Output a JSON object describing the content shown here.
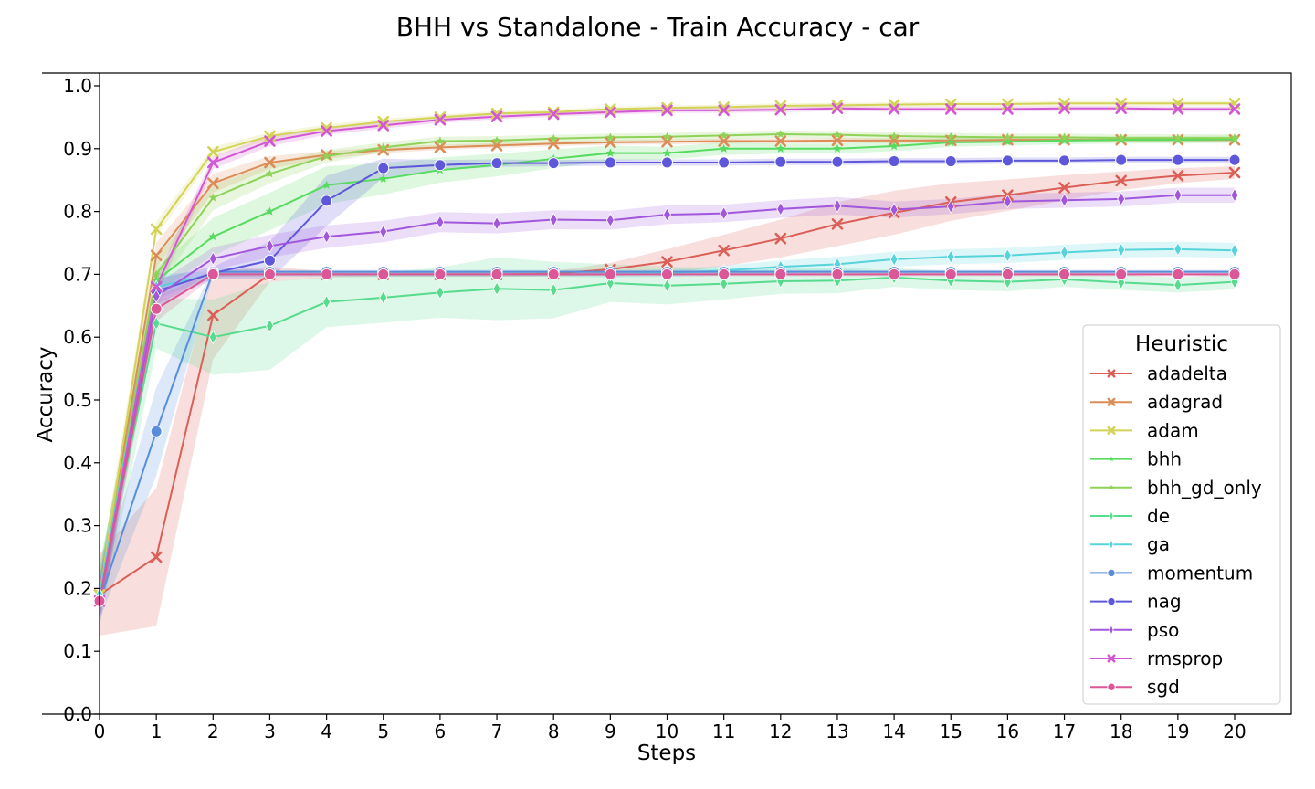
{
  "chart_data": {
    "type": "line",
    "title": "BHH vs Standalone - Train Accuracy - car",
    "xlabel": "Steps",
    "ylabel": "Accuracy",
    "x": [
      0,
      1,
      2,
      3,
      4,
      5,
      6,
      7,
      8,
      9,
      10,
      11,
      12,
      13,
      14,
      15,
      16,
      17,
      18,
      19,
      20
    ],
    "xlim": [
      0,
      20
    ],
    "ylim": [
      0.0,
      1.0
    ],
    "x_ticks": [
      0,
      1,
      2,
      3,
      4,
      5,
      6,
      7,
      8,
      9,
      10,
      11,
      12,
      13,
      14,
      15,
      16,
      17,
      18,
      19,
      20
    ],
    "y_ticks": [
      0.0,
      0.1,
      0.2,
      0.3,
      0.4,
      0.5,
      0.6,
      0.7,
      0.8,
      0.9,
      1.0
    ],
    "grid": false,
    "legend": {
      "title": "Heuristic",
      "placement": "right"
    },
    "series": [
      {
        "name": "adadelta",
        "color": "#db5f57",
        "marker": "x",
        "values": [
          0.19,
          0.25,
          0.635,
          0.7,
          0.7,
          0.7,
          0.7,
          0.7,
          0.701,
          0.708,
          0.72,
          0.738,
          0.757,
          0.78,
          0.798,
          0.815,
          0.826,
          0.838,
          0.849,
          0.857,
          0.862
        ],
        "band": [
          0.065,
          0.11,
          0.07,
          0.012,
          0.005,
          0.004,
          0.004,
          0.004,
          0.004,
          0.01,
          0.02,
          0.025,
          0.03,
          0.035,
          0.035,
          0.03,
          0.025,
          0.02,
          0.015,
          0.012,
          0.01
        ]
      },
      {
        "name": "adagrad",
        "color": "#db8d57",
        "marker": "x",
        "values": [
          0.19,
          0.73,
          0.845,
          0.878,
          0.89,
          0.898,
          0.902,
          0.905,
          0.908,
          0.91,
          0.911,
          0.912,
          0.912,
          0.913,
          0.913,
          0.913,
          0.914,
          0.914,
          0.914,
          0.914,
          0.914
        ],
        "band": [
          0.03,
          0.02,
          0.015,
          0.01,
          0.006,
          0.005,
          0.004,
          0.004,
          0.004,
          0.004,
          0.004,
          0.004,
          0.004,
          0.004,
          0.004,
          0.004,
          0.004,
          0.004,
          0.004,
          0.004,
          0.004
        ]
      },
      {
        "name": "adam",
        "color": "#d3d357",
        "marker": "x",
        "values": [
          0.19,
          0.772,
          0.895,
          0.92,
          0.933,
          0.943,
          0.95,
          0.956,
          0.958,
          0.963,
          0.965,
          0.966,
          0.968,
          0.969,
          0.97,
          0.971,
          0.971,
          0.972,
          0.972,
          0.972,
          0.972
        ],
        "band": [
          0.03,
          0.012,
          0.008,
          0.006,
          0.005,
          0.005,
          0.004,
          0.004,
          0.004,
          0.004,
          0.004,
          0.004,
          0.004,
          0.004,
          0.004,
          0.004,
          0.004,
          0.004,
          0.004,
          0.004,
          0.004
        ]
      },
      {
        "name": "bhh",
        "color": "#57db5f",
        "marker": "star",
        "values": [
          0.19,
          0.69,
          0.76,
          0.8,
          0.842,
          0.852,
          0.866,
          0.874,
          0.884,
          0.893,
          0.893,
          0.9,
          0.9,
          0.9,
          0.904,
          0.91,
          0.911,
          0.913,
          0.914,
          0.914,
          0.915
        ],
        "band": [
          0.04,
          0.02,
          0.03,
          0.03,
          0.03,
          0.025,
          0.02,
          0.018,
          0.015,
          0.012,
          0.01,
          0.01,
          0.008,
          0.008,
          0.008,
          0.007,
          0.006,
          0.006,
          0.006,
          0.006,
          0.006
        ]
      },
      {
        "name": "bhh_gd_only",
        "color": "#8ed357",
        "marker": "star",
        "values": [
          0.19,
          0.7,
          0.822,
          0.86,
          0.888,
          0.902,
          0.912,
          0.913,
          0.916,
          0.918,
          0.919,
          0.921,
          0.923,
          0.922,
          0.92,
          0.919,
          0.918,
          0.918,
          0.917,
          0.917,
          0.917
        ],
        "band": [
          0.04,
          0.025,
          0.02,
          0.015,
          0.01,
          0.008,
          0.007,
          0.007,
          0.006,
          0.006,
          0.006,
          0.006,
          0.006,
          0.006,
          0.006,
          0.006,
          0.006,
          0.006,
          0.006,
          0.006,
          0.006
        ]
      },
      {
        "name": "de",
        "color": "#57db8d",
        "marker": "diamond",
        "values": [
          0.19,
          0.622,
          0.6,
          0.618,
          0.656,
          0.663,
          0.671,
          0.677,
          0.675,
          0.686,
          0.682,
          0.685,
          0.689,
          0.69,
          0.695,
          0.69,
          0.688,
          0.692,
          0.687,
          0.683,
          0.688
        ],
        "band": [
          0.05,
          0.04,
          0.06,
          0.07,
          0.04,
          0.04,
          0.04,
          0.05,
          0.045,
          0.03,
          0.03,
          0.025,
          0.02,
          0.02,
          0.015,
          0.015,
          0.015,
          0.012,
          0.012,
          0.012,
          0.012
        ]
      },
      {
        "name": "ga",
        "color": "#57d3db",
        "marker": "diamond",
        "values": [
          0.19,
          0.68,
          0.7,
          0.7,
          0.7,
          0.7,
          0.7,
          0.7,
          0.7,
          0.7,
          0.702,
          0.706,
          0.712,
          0.716,
          0.724,
          0.728,
          0.73,
          0.735,
          0.739,
          0.74,
          0.738
        ],
        "band": [
          0.03,
          0.02,
          0.005,
          0.004,
          0.004,
          0.004,
          0.004,
          0.004,
          0.004,
          0.005,
          0.006,
          0.008,
          0.01,
          0.012,
          0.012,
          0.012,
          0.012,
          0.012,
          0.012,
          0.012,
          0.012
        ]
      },
      {
        "name": "momentum",
        "color": "#578ddb",
        "marker": "circle",
        "values": [
          0.18,
          0.45,
          0.704,
          0.704,
          0.704,
          0.704,
          0.704,
          0.704,
          0.704,
          0.704,
          0.704,
          0.704,
          0.704,
          0.704,
          0.704,
          0.704,
          0.704,
          0.704,
          0.704,
          0.704,
          0.704
        ],
        "band": [
          0.03,
          0.07,
          0.006,
          0.003,
          0.003,
          0.003,
          0.003,
          0.003,
          0.003,
          0.003,
          0.003,
          0.003,
          0.003,
          0.003,
          0.003,
          0.003,
          0.003,
          0.003,
          0.003,
          0.003,
          0.003
        ]
      },
      {
        "name": "nag",
        "color": "#5f57db",
        "marker": "circle",
        "values": [
          0.18,
          0.673,
          0.702,
          0.722,
          0.817,
          0.869,
          0.874,
          0.877,
          0.877,
          0.878,
          0.878,
          0.878,
          0.879,
          0.879,
          0.88,
          0.88,
          0.881,
          0.881,
          0.882,
          0.882,
          0.882
        ],
        "band": [
          0.03,
          0.02,
          0.01,
          0.03,
          0.04,
          0.015,
          0.008,
          0.006,
          0.005,
          0.005,
          0.005,
          0.005,
          0.005,
          0.005,
          0.005,
          0.005,
          0.005,
          0.005,
          0.005,
          0.005,
          0.005
        ]
      },
      {
        "name": "pso",
        "color": "#a157db",
        "marker": "diamond",
        "values": [
          0.18,
          0.665,
          0.725,
          0.745,
          0.76,
          0.768,
          0.783,
          0.781,
          0.787,
          0.786,
          0.795,
          0.797,
          0.804,
          0.809,
          0.803,
          0.808,
          0.816,
          0.818,
          0.82,
          0.826,
          0.826
        ],
        "band": [
          0.04,
          0.02,
          0.018,
          0.018,
          0.018,
          0.017,
          0.016,
          0.016,
          0.015,
          0.015,
          0.015,
          0.014,
          0.014,
          0.014,
          0.013,
          0.012,
          0.012,
          0.012,
          0.012,
          0.012,
          0.012
        ]
      },
      {
        "name": "rmsprop",
        "color": "#d357d3",
        "marker": "x",
        "values": [
          0.18,
          0.68,
          0.878,
          0.912,
          0.928,
          0.937,
          0.946,
          0.951,
          0.955,
          0.958,
          0.961,
          0.961,
          0.962,
          0.964,
          0.963,
          0.963,
          0.963,
          0.964,
          0.964,
          0.963,
          0.963
        ],
        "band": [
          0.03,
          0.015,
          0.01,
          0.008,
          0.006,
          0.005,
          0.005,
          0.004,
          0.004,
          0.004,
          0.004,
          0.004,
          0.004,
          0.004,
          0.004,
          0.004,
          0.004,
          0.004,
          0.004,
          0.004,
          0.004
        ]
      },
      {
        "name": "sgd",
        "color": "#db5797",
        "marker": "circle",
        "values": [
          0.18,
          0.645,
          0.7,
          0.7,
          0.7,
          0.7,
          0.7,
          0.7,
          0.7,
          0.7,
          0.7,
          0.7,
          0.7,
          0.7,
          0.7,
          0.7,
          0.7,
          0.7,
          0.7,
          0.7,
          0.7
        ],
        "band": [
          0.03,
          0.02,
          0.004,
          0.003,
          0.003,
          0.003,
          0.003,
          0.003,
          0.003,
          0.003,
          0.003,
          0.003,
          0.003,
          0.003,
          0.003,
          0.003,
          0.003,
          0.003,
          0.003,
          0.003,
          0.003
        ]
      }
    ]
  }
}
